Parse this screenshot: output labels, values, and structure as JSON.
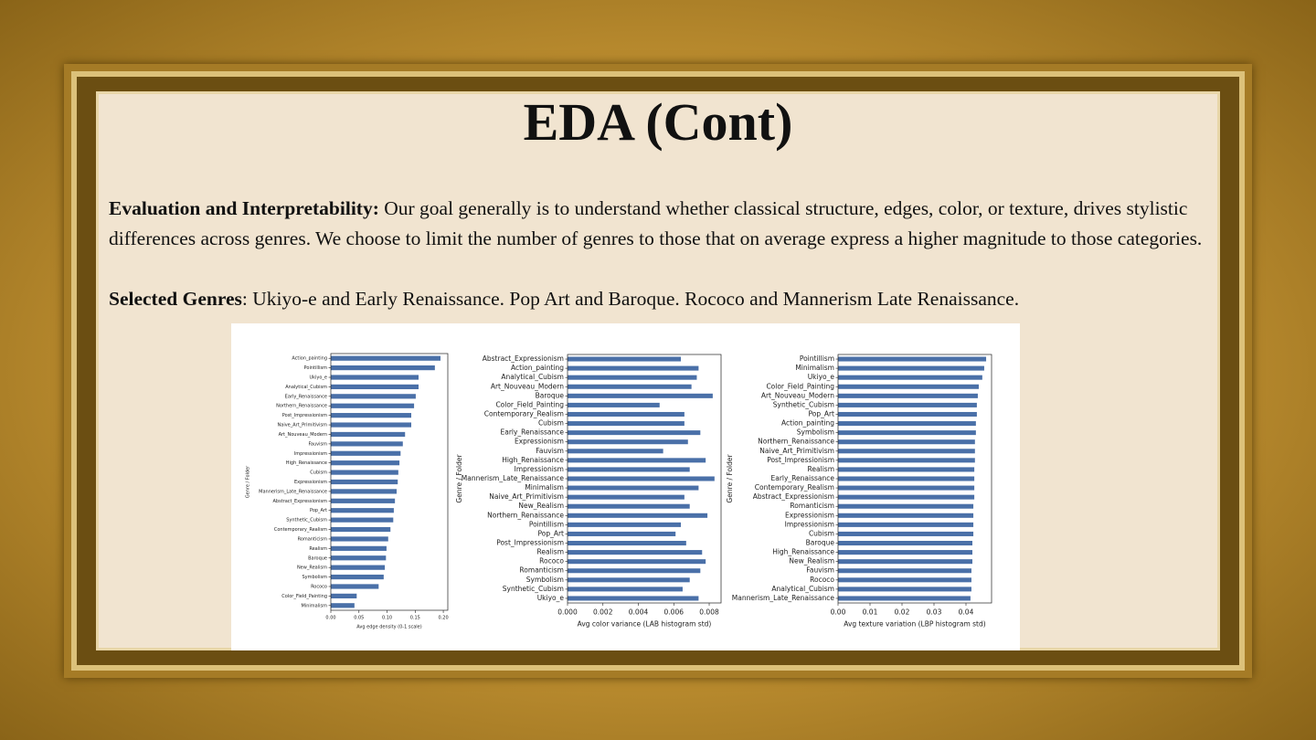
{
  "title": "EDA (Cont)",
  "body": [
    {
      "label": "Evaluation and Interpretability:",
      "text": " Our goal generally is to understand whether classical structure, edges, color, or texture, drives stylistic differences across genres. We choose to limit the number of genres to those that on average express a higher magnitude to those categories."
    },
    {
      "label": "Selected Genres",
      "text": ": Ukiyo-e and Early Renaissance. Pop Art and Baroque.  Rococo and Mannerism Late Renaissance."
    }
  ],
  "chart_data": [
    {
      "type": "barh",
      "xlabel": "Avg edge density (0-1 scale)",
      "ylabel": "Genre / Folder",
      "color": "#4a70a8",
      "categories": [
        "Action_painting",
        "Pointillism",
        "Ukiyo_e",
        "Analytical_Cubism",
        "Early_Renaissance",
        "Northern_Renaissance",
        "Post_Impressionism",
        "Naive_Art_Primitivism",
        "Art_Nouveau_Modern",
        "Fauvism",
        "Impressionism",
        "High_Renaissance",
        "Cubism",
        "Expressionism",
        "Mannerism_Late_Renaissance",
        "Abstract_Expressionism",
        "Pop_Art",
        "Synthetic_Cubism",
        "Contemporary_Realism",
        "Romanticism",
        "Realism",
        "Baroque",
        "New_Realism",
        "Symbolism",
        "Rococo",
        "Color_Field_Painting",
        "Minimalism"
      ],
      "values": [
        0.195,
        0.185,
        0.156,
        0.156,
        0.151,
        0.148,
        0.143,
        0.143,
        0.132,
        0.128,
        0.124,
        0.122,
        0.12,
        0.119,
        0.117,
        0.114,
        0.112,
        0.111,
        0.106,
        0.102,
        0.099,
        0.098,
        0.096,
        0.094,
        0.085,
        0.046,
        0.042
      ],
      "xlim": [
        0,
        0.208
      ],
      "xticks": [
        {
          "value": 0,
          "label": "0.00"
        },
        {
          "value": 0.05,
          "label": "0.05"
        },
        {
          "value": 0.1,
          "label": "0.10"
        },
        {
          "value": 0.15,
          "label": "0.15"
        },
        {
          "value": 0.2,
          "label": "0.20"
        }
      ]
    },
    {
      "type": "barh",
      "xlabel": "Avg color variance (LAB histogram std)",
      "ylabel": "Genre / Folder",
      "color": "#4a70a8",
      "categories": [
        "Abstract_Expressionism",
        "Action_painting",
        "Analytical_Cubism",
        "Art_Nouveau_Modern",
        "Baroque",
        "Color_Field_Painting",
        "Contemporary_Realism",
        "Cubism",
        "Early_Renaissance",
        "Expressionism",
        "Fauvism",
        "High_Renaissance",
        "Impressionism",
        "Mannerism_Late_Renaissance",
        "Minimalism",
        "Naive_Art_Primitivism",
        "New_Realism",
        "Northern_Renaissance",
        "Pointillism",
        "Pop_Art",
        "Post_Impressionism",
        "Realism",
        "Rococo",
        "Romanticism",
        "Symbolism",
        "Synthetic_Cubism",
        "Ukiyo_e"
      ],
      "values": [
        0.0064,
        0.0074,
        0.0073,
        0.007,
        0.0082,
        0.0052,
        0.0066,
        0.0066,
        0.0075,
        0.0068,
        0.0054,
        0.0078,
        0.0069,
        0.0083,
        0.0074,
        0.0066,
        0.0069,
        0.0079,
        0.0064,
        0.0061,
        0.0067,
        0.0076,
        0.0078,
        0.0075,
        0.0069,
        0.0065,
        0.0074
      ],
      "xlim": [
        0,
        0.00867
      ],
      "xticks": [
        {
          "value": 0,
          "label": "0.000"
        },
        {
          "value": 0.002,
          "label": "0.002"
        },
        {
          "value": 0.004,
          "label": "0.004"
        },
        {
          "value": 0.006,
          "label": "0.006"
        },
        {
          "value": 0.008,
          "label": "0.008"
        }
      ]
    },
    {
      "type": "barh",
      "xlabel": "Avg texture variation (LBP histogram std)",
      "ylabel": "Genre / Folder",
      "color": "#4a70a8",
      "categories": [
        "Pointillism",
        "Minimalism",
        "Ukiyo_e",
        "Color_Field_Painting",
        "Art_Nouveau_Modern",
        "Synthetic_Cubism",
        "Pop_Art",
        "Action_painting",
        "Symbolism",
        "Northern_Renaissance",
        "Naive_Art_Primitivism",
        "Post_Impressionism",
        "Realism",
        "Early_Renaissance",
        "Contemporary_Realism",
        "Abstract_Expressionism",
        "Romanticism",
        "Expressionism",
        "Impressionism",
        "Cubism",
        "Baroque",
        "High_Renaissance",
        "New_Realism",
        "Fauvism",
        "Rococo",
        "Analytical_Cubism",
        "Mannerism_Late_Renaissance"
      ],
      "values": [
        0.0463,
        0.0457,
        0.0451,
        0.044,
        0.0437,
        0.0434,
        0.0434,
        0.0431,
        0.0431,
        0.0428,
        0.0428,
        0.0428,
        0.0426,
        0.0426,
        0.0426,
        0.0426,
        0.0423,
        0.0423,
        0.0423,
        0.0423,
        0.042,
        0.042,
        0.042,
        0.0417,
        0.0417,
        0.0417,
        0.0414
      ],
      "xlim": [
        0,
        0.048
      ],
      "xticks": [
        {
          "value": 0,
          "label": "0.00"
        },
        {
          "value": 0.01,
          "label": "0.01"
        },
        {
          "value": 0.02,
          "label": "0.02"
        },
        {
          "value": 0.03,
          "label": "0.03"
        },
        {
          "value": 0.04,
          "label": "0.04"
        }
      ]
    }
  ]
}
